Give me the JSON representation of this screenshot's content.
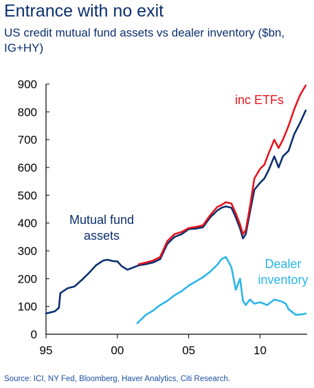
{
  "title": "Entrance with no exit",
  "subtitle": "US credit mutual fund assets vs dealer inventory ($bn, IG+HY)",
  "source": "Source: ICI, NY Fed, Bloomberg, Haver Analytics, Citi Research.",
  "chart_data": {
    "type": "line",
    "xlim": [
      1995,
      2013.3
    ],
    "ylim": [
      0,
      900
    ],
    "x_ticks": [
      1995,
      2000,
      2005,
      2010
    ],
    "x_tick_labels": [
      "95",
      "00",
      "05",
      "10"
    ],
    "y_ticks": [
      0,
      100,
      200,
      300,
      400,
      500,
      600,
      700,
      800,
      900
    ],
    "grid": false,
    "colors": {
      "mutual_fund": "#0b2f6e",
      "etf": "#e8141c",
      "dealer": "#29b5e8"
    },
    "annotations": [
      {
        "text": "inc ETFs",
        "color": "#e8141c"
      },
      {
        "lines": [
          "Mutual fund",
          "assets"
        ],
        "color": "#0b2f6e"
      },
      {
        "lines": [
          "Dealer",
          "inventory"
        ],
        "color": "#29b5e8"
      }
    ],
    "series": [
      {
        "key": "mutual_fund",
        "x": [
          1995.0,
          1995.6,
          1995.9,
          1996.0,
          1996.5,
          1997.0,
          1997.5,
          1998.0,
          1998.5,
          1999.0,
          1999.3,
          1999.7,
          2000.0,
          2000.3,
          2000.7,
          2001.0,
          2001.5,
          2002.0,
          2002.5,
          2003.0,
          2003.5,
          2004.0,
          2004.5,
          2005.0,
          2005.5,
          2006.0,
          2006.5,
          2007.0,
          2007.3,
          2007.6,
          2008.0,
          2008.3,
          2008.6,
          2008.8,
          2009.0,
          2009.3,
          2009.6,
          2010.0,
          2010.3,
          2010.6,
          2011.0,
          2011.3,
          2011.6,
          2012.0,
          2012.4,
          2012.8,
          2013.2
        ],
        "y": [
          75,
          82,
          95,
          148,
          165,
          172,
          195,
          220,
          248,
          265,
          268,
          263,
          262,
          245,
          232,
          238,
          248,
          252,
          258,
          270,
          325,
          350,
          360,
          378,
          380,
          385,
          420,
          445,
          455,
          460,
          455,
          420,
          380,
          345,
          360,
          440,
          520,
          545,
          560,
          590,
          640,
          600,
          640,
          660,
          720,
          760,
          805
        ]
      },
      {
        "key": "etf",
        "x": [
          2001.5,
          2002.0,
          2002.5,
          2003.0,
          2003.5,
          2004.0,
          2004.5,
          2005.0,
          2005.5,
          2006.0,
          2006.5,
          2007.0,
          2007.3,
          2007.6,
          2008.0,
          2008.3,
          2008.6,
          2008.8,
          2009.0,
          2009.3,
          2009.6,
          2010.0,
          2010.3,
          2010.6,
          2011.0,
          2011.3,
          2011.6,
          2012.0,
          2012.4,
          2012.8,
          2013.2
        ],
        "y": [
          252,
          258,
          265,
          278,
          335,
          360,
          368,
          382,
          386,
          392,
          428,
          458,
          465,
          475,
          470,
          435,
          395,
          360,
          375,
          460,
          560,
          595,
          610,
          650,
          700,
          670,
          700,
          750,
          810,
          860,
          895
        ]
      },
      {
        "key": "dealer",
        "x": [
          2001.4,
          2001.7,
          2002.0,
          2002.5,
          2003.0,
          2003.5,
          2004.0,
          2004.5,
          2005.0,
          2005.5,
          2006.0,
          2006.5,
          2007.0,
          2007.3,
          2007.6,
          2007.8,
          2008.0,
          2008.3,
          2008.6,
          2008.8,
          2009.0,
          2009.3,
          2009.6,
          2010.0,
          2010.5,
          2011.0,
          2011.5,
          2011.8,
          2012.0,
          2012.5,
          2013.0,
          2013.2
        ],
        "y": [
          40,
          55,
          70,
          85,
          105,
          120,
          140,
          155,
          175,
          190,
          205,
          225,
          250,
          270,
          278,
          260,
          240,
          160,
          200,
          120,
          105,
          125,
          110,
          115,
          105,
          125,
          118,
          110,
          90,
          70,
          72,
          75
        ]
      }
    ]
  }
}
